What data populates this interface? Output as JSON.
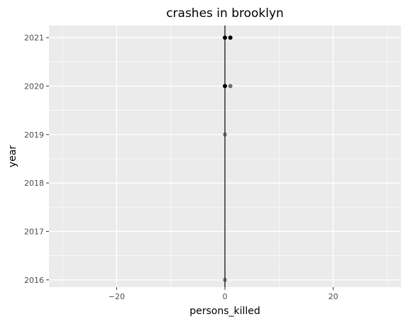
{
  "chart_data": {
    "type": "scatter",
    "title": "crashes in brooklyn",
    "xlabel": "persons_killed",
    "ylabel": "year",
    "xlim": [
      -32.5,
      32.5
    ],
    "ylim": [
      2015.85,
      2021.25
    ],
    "x_ticks": [
      -20,
      0,
      20
    ],
    "x_tick_labels": [
      "−20",
      "0",
      "20"
    ],
    "y_ticks": [
      2016,
      2017,
      2018,
      2019,
      2020,
      2021
    ],
    "y_tick_labels": [
      "2016",
      "2017",
      "2018",
      "2019",
      "2020",
      "2021"
    ],
    "grid": true,
    "vline_x": 0,
    "point_color": "#000000",
    "panel_color": "#ebebeb",
    "grid_color": "#ffffff",
    "points": [
      {
        "x": 0,
        "y": 2021,
        "opacity": 1.0
      },
      {
        "x": 1,
        "y": 2021,
        "opacity": 1.0
      },
      {
        "x": 0,
        "y": 2020,
        "opacity": 1.0
      },
      {
        "x": 1,
        "y": 2020,
        "opacity": 0.55
      },
      {
        "x": 0,
        "y": 2019,
        "opacity": 0.4
      },
      {
        "x": 0,
        "y": 2016,
        "opacity": 0.4
      }
    ]
  }
}
